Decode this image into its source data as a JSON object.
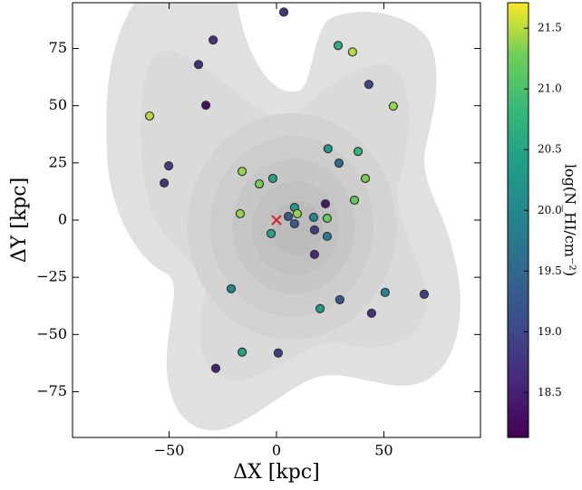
{
  "chart_data": {
    "type": "scatter",
    "xlabel": "ΔX [kpc]",
    "ylabel": "ΔY [kpc]",
    "colorbar_label": "log(N_HI/cm⁻²)",
    "colormap": "viridis",
    "xlim": [
      -95,
      95
    ],
    "ylim": [
      -95,
      95
    ],
    "xticks": [
      {
        "value": -50,
        "label": "−50"
      },
      0,
      50
    ],
    "yticks": [
      {
        "value": -75,
        "label": "−75"
      },
      {
        "value": -50,
        "label": "−50"
      },
      {
        "value": -25,
        "label": "−25"
      },
      0,
      25,
      50,
      75
    ],
    "clim": [
      18.13,
      21.71
    ],
    "cticks": [
      18.5,
      {
        "value": 19,
        "label": "19.0"
      },
      19.5,
      {
        "value": 20,
        "label": "20.0"
      },
      20.5,
      {
        "value": 21,
        "label": "21.0"
      },
      21.5
    ],
    "x": [
      3.4,
      -29.5,
      -36.3,
      -32.9,
      -59.1,
      -50.2,
      -52.3,
      28.7,
      35.4,
      43,
      54.4,
      24,
      38,
      29.1,
      -16,
      41.4,
      -1.7,
      -8,
      36.3,
      8.4,
      22.8,
      9.7,
      5.5,
      17.3,
      23.6,
      -16.9,
      8.4,
      -2.5,
      17.7,
      23.6,
      17.7,
      -21.1,
      50.6,
      68.8,
      29.5,
      20.3,
      44.3,
      -16,
      0.8,
      -28.3
    ],
    "y": [
      90.9,
      78.7,
      68,
      50.2,
      45.5,
      23.7,
      16.2,
      76.3,
      73.5,
      59.3,
      49.8,
      31.2,
      30,
      24.9,
      21.3,
      18.2,
      18.2,
      15.8,
      8.7,
      5.5,
      7.1,
      2.8,
      1.6,
      1.2,
      0.8,
      2.8,
      -1.6,
      -5.9,
      -4.3,
      -7.1,
      -15,
      -30,
      -31.6,
      -32.4,
      -34.8,
      -38.7,
      -40.7,
      -57.7,
      -58.1,
      -64.8
    ],
    "color_values": [
      18.8,
      18.7,
      18.7,
      18.3,
      21.5,
      18.9,
      18.8,
      20.7,
      21.5,
      19,
      21.4,
      20.3,
      20.8,
      19.5,
      21.4,
      21.3,
      20.5,
      21.3,
      21.2,
      20.3,
      18.4,
      21.4,
      19.3,
      20,
      21.2,
      21.4,
      19.3,
      20.5,
      18.9,
      19.8,
      18.6,
      20,
      19.9,
      18.9,
      19.2,
      20.4,
      18.7,
      20.5,
      18.9,
      18.5
    ],
    "marker": {
      "x": 0,
      "y": 0,
      "color": "#d62728"
    }
  }
}
